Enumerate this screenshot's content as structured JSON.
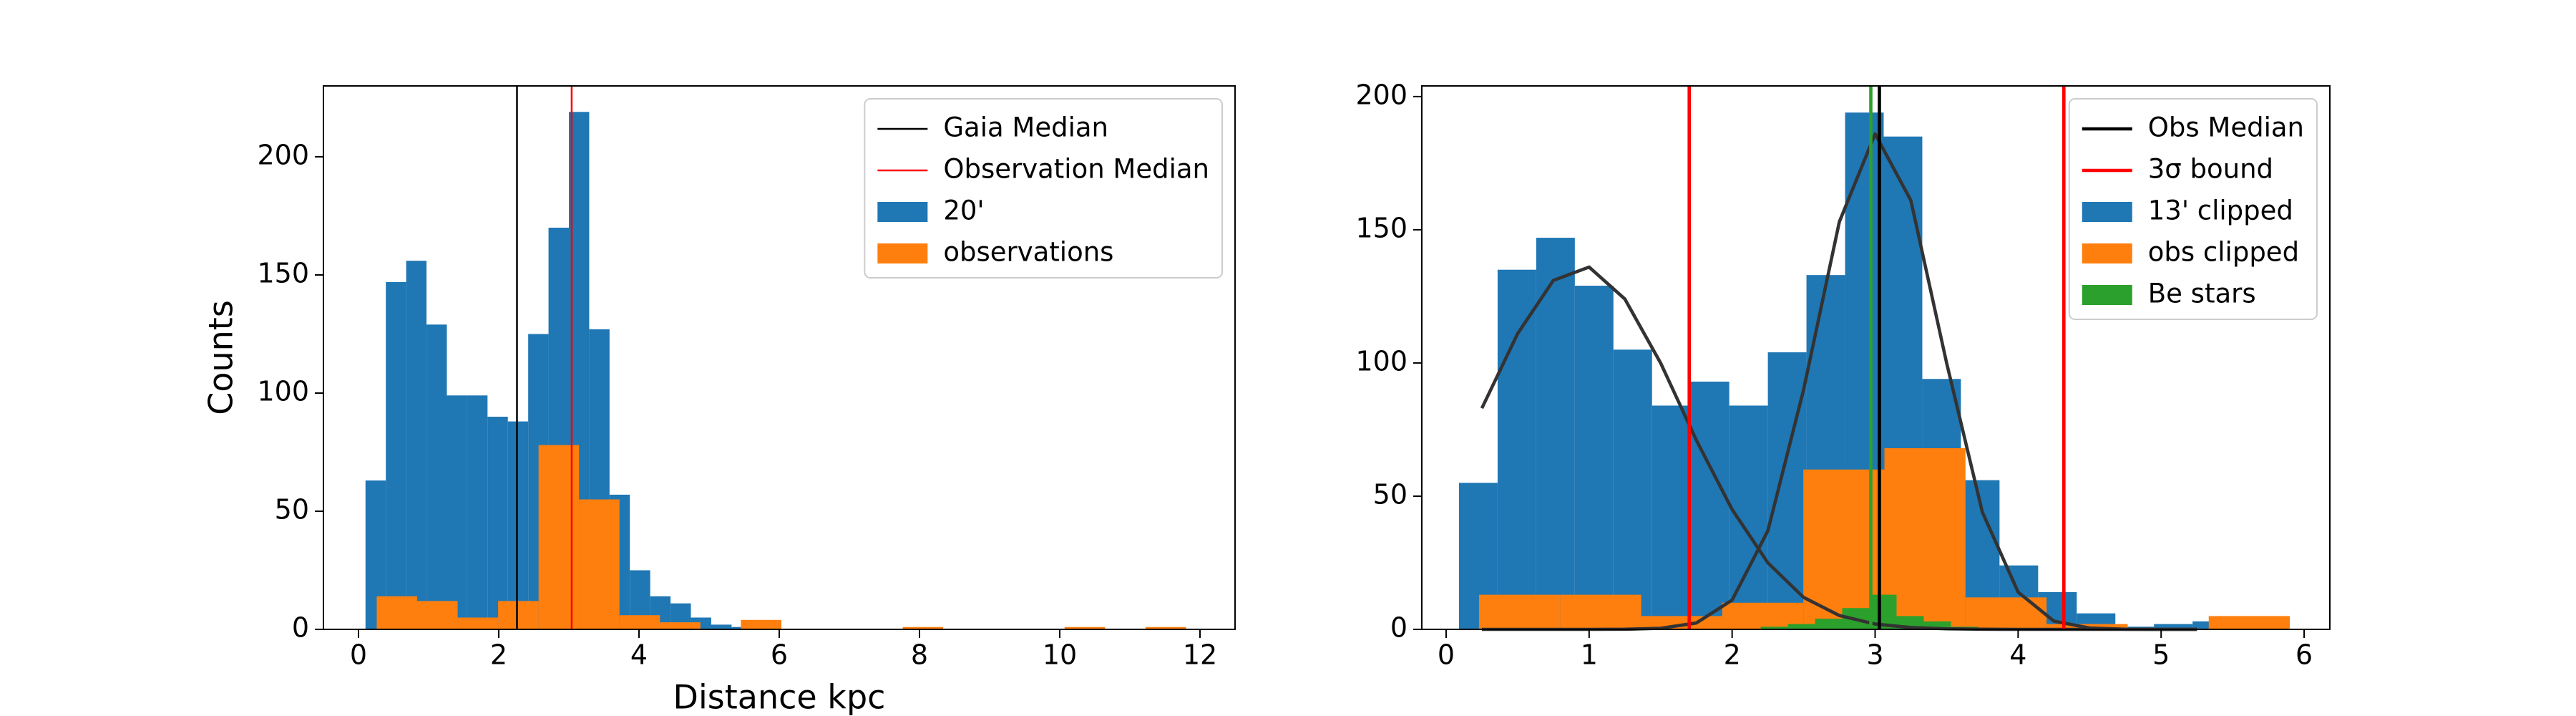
{
  "chart_data": [
    {
      "type": "histogram",
      "xlabel": "Distance kpc",
      "ylabel": "Counts",
      "xlim": [
        -0.5,
        12.5
      ],
      "ylim": [
        0,
        230
      ],
      "xticks": [
        0,
        2,
        4,
        6,
        8,
        10,
        12
      ],
      "yticks": [
        0,
        50,
        100,
        150,
        200
      ],
      "legend": "upper right",
      "series": [
        {
          "name": "20'",
          "color": "#1f77b4",
          "bins": [
            0.1,
            0.39,
            0.68,
            0.97,
            1.26,
            1.55,
            1.84,
            2.13,
            2.42,
            2.71,
            3.0,
            3.29,
            3.58,
            3.87,
            4.16,
            4.45,
            4.74,
            5.03,
            5.32,
            5.61,
            5.9,
            6.19,
            6.48,
            6.77,
            7.06,
            7.35,
            7.64,
            7.93,
            8.22,
            8.51,
            8.8,
            9.09,
            9.38,
            9.67,
            9.96,
            10.25,
            10.54,
            10.83,
            11.12,
            11.41,
            11.7,
            11.99
          ],
          "values": [
            63,
            147,
            156,
            129,
            99,
            99,
            90,
            88,
            125,
            170,
            219,
            127,
            57,
            25,
            14,
            11,
            5,
            2,
            1,
            0,
            0,
            0,
            0,
            0,
            0,
            0,
            0,
            0,
            0,
            0,
            0,
            0,
            0,
            0,
            0,
            0,
            0,
            0,
            0,
            0,
            0
          ]
        },
        {
          "name": "observations",
          "color": "#ff7f0e",
          "bins": [
            0.26,
            0.837,
            1.414,
            1.991,
            2.568,
            3.145,
            3.722,
            4.299,
            4.876,
            5.453,
            6.03,
            6.607,
            7.184,
            7.761,
            8.338,
            8.915,
            9.492,
            10.069,
            10.646,
            11.223,
            11.8
          ],
          "values": [
            14,
            12,
            5,
            12,
            78,
            55,
            6,
            3,
            0,
            4,
            0,
            0,
            0,
            1,
            0,
            0,
            0,
            1,
            0,
            1
          ]
        }
      ],
      "vlines": [
        {
          "name": "Gaia Median",
          "color": "#000000",
          "x": [
            2.26
          ]
        },
        {
          "name": "Observation Median",
          "color": "#ff0000",
          "x": [
            3.04
          ]
        }
      ]
    },
    {
      "type": "histogram",
      "xlim": [
        -0.17,
        6.18
      ],
      "ylim": [
        0,
        204
      ],
      "xticks": [
        0,
        1,
        2,
        3,
        4,
        5,
        6
      ],
      "yticks": [
        0,
        50,
        100,
        150,
        200
      ],
      "legend": "upper right",
      "series": [
        {
          "name": "13' clipped",
          "color": "#1f77b4",
          "bins": [
            0.09,
            0.36,
            0.63,
            0.9,
            1.17,
            1.44,
            1.71,
            1.98,
            2.25,
            2.52,
            2.79,
            3.06,
            3.33,
            3.6,
            3.87,
            4.14,
            4.41,
            4.68,
            4.95,
            5.22,
            5.49
          ],
          "values": [
            55,
            135,
            147,
            129,
            105,
            84,
            93,
            84,
            104,
            133,
            194,
            185,
            94,
            56,
            24,
            14,
            6,
            1,
            2,
            3
          ]
        },
        {
          "name": "obs clipped",
          "color": "#ff7f0e",
          "bins": [
            0.23,
            0.797,
            1.364,
            1.931,
            2.498,
            3.065,
            3.632,
            4.199,
            4.766,
            5.333,
            5.9
          ],
          "values": [
            13,
            13,
            5,
            10,
            60,
            68,
            12,
            2,
            0,
            5
          ]
        },
        {
          "name": "Be stars",
          "color": "#2ca02c",
          "bins": [
            2.2,
            2.39,
            2.58,
            2.77,
            2.96,
            3.15,
            3.34,
            3.53,
            3.72
          ],
          "values": [
            1,
            2,
            4,
            8,
            13,
            5,
            3,
            1
          ]
        }
      ],
      "curves": {
        "x": [
          0.25,
          0.5,
          0.75,
          1.0,
          1.25,
          1.5,
          1.75,
          2.0,
          2.25,
          2.5,
          2.75,
          3.0,
          3.25,
          3.5,
          3.75,
          4.0,
          4.25,
          4.5,
          4.75,
          5.0,
          5.25
        ],
        "series": [
          {
            "color": "#333333",
            "values": [
              83,
              111,
              131,
              136,
              124,
              100,
              71,
              45,
              25,
              12,
              5.2,
              2.0,
              0.7,
              0.2,
              0.05,
              0,
              0,
              0,
              0,
              0,
              0
            ]
          },
          {
            "color": "#333333",
            "values": [
              0,
              0,
              0,
              0,
              0.04,
              0.4,
              2.4,
              11,
              37,
              90,
              153,
              186,
              161,
              100,
              44,
              14,
              3.1,
              0.5,
              0.06,
              0,
              0
            ]
          }
        ]
      },
      "vlines": [
        {
          "name": "Obs Median",
          "color": "#000000",
          "x": [
            3.03
          ]
        },
        {
          "name": "3σ bound",
          "color": "#ff0000",
          "x": [
            1.7,
            4.32
          ]
        },
        {
          "color": "#2ca02c",
          "x": [
            2.97
          ]
        }
      ]
    }
  ]
}
